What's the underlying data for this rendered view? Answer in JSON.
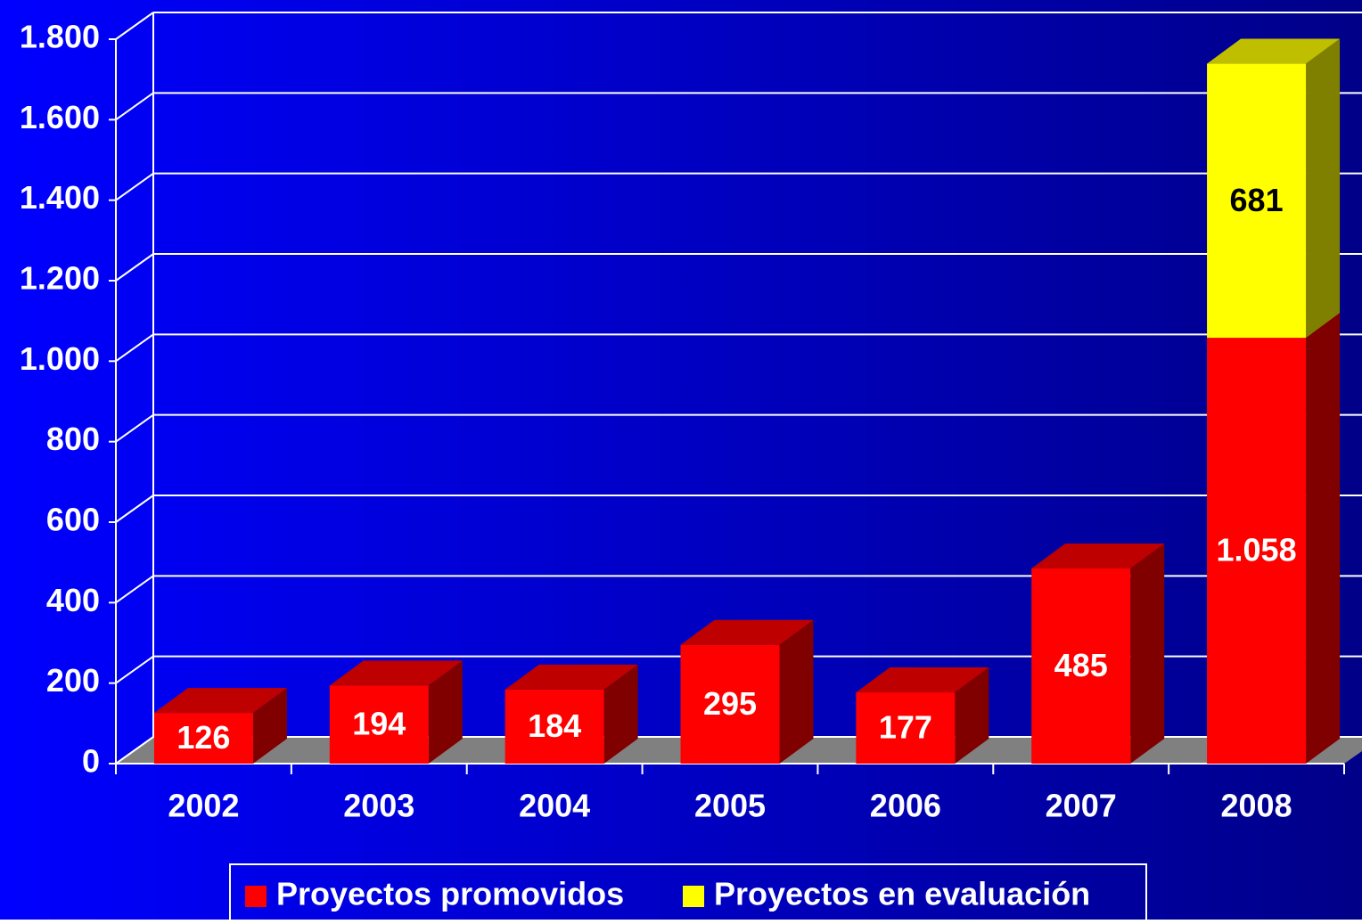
{
  "chart_data": {
    "type": "bar3d-stacked",
    "categories": [
      "2002",
      "2003",
      "2004",
      "2005",
      "2006",
      "2007",
      "2008"
    ],
    "series": [
      {
        "name": "Proyectos promovidos",
        "color": "#ff0000",
        "values": [
          126,
          194,
          184,
          295,
          177,
          485,
          1058
        ],
        "value_labels": [
          "126",
          "194",
          "184",
          "295",
          "177",
          "485",
          "1.058"
        ]
      },
      {
        "name": "Proyectos en evaluación",
        "color": "#ffff00",
        "values": [
          null,
          null,
          null,
          null,
          null,
          null,
          681
        ]
      }
    ],
    "ylim": [
      0,
      1800
    ],
    "yticks": [
      0,
      200,
      400,
      600,
      800,
      {
        "value": 1000,
        "label": "1.000"
      },
      {
        "value": 1200,
        "label": "1.200"
      },
      {
        "value": 1400,
        "label": "1.400"
      },
      {
        "value": 1600,
        "label": "1.600"
      },
      {
        "value": 1800,
        "label": "1.800"
      }
    ],
    "grid": true,
    "legend": "bottom"
  }
}
